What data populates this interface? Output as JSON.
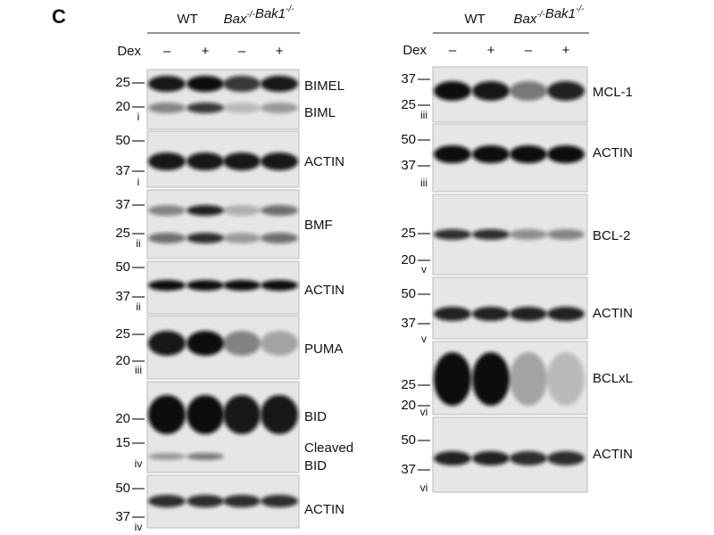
{
  "panel_label": "C",
  "left": {
    "header": {
      "wt": "WT",
      "ko": [
        {
          "gene": "Bax",
          "sup": "-/-"
        },
        {
          "gene": "Bak1",
          "sup": "-/-"
        }
      ],
      "dex": "Dex",
      "lanes": [
        "–",
        "+",
        "–",
        "+"
      ]
    },
    "blots": [
      {
        "markers": [
          "25",
          "20"
        ],
        "roman": "i",
        "labels": [
          "BIMEL",
          "BIML"
        ]
      },
      {
        "markers": [
          "50",
          "37"
        ],
        "roman": "i",
        "labels": [
          "ACTIN"
        ]
      },
      {
        "markers": [
          "37",
          "25"
        ],
        "roman": "ii",
        "labels": [
          "BMF"
        ]
      },
      {
        "markers": [
          "50",
          "37"
        ],
        "roman": "ii",
        "labels": [
          "ACTIN"
        ]
      },
      {
        "markers": [
          "25",
          "20"
        ],
        "roman": "iii",
        "labels": [
          "PUMA"
        ]
      },
      {
        "markers": [
          "20",
          "15"
        ],
        "roman": "iv",
        "labels": [
          "BID",
          "Cleaved",
          "BID"
        ]
      },
      {
        "markers": [
          "50",
          "37"
        ],
        "roman": "iv",
        "labels": [
          "ACTIN"
        ]
      }
    ]
  },
  "right": {
    "header": {
      "wt": "WT",
      "ko": [
        {
          "gene": "Bax",
          "sup": "-/-"
        },
        {
          "gene": "Bak1",
          "sup": "-/-"
        }
      ],
      "dex": "Dex",
      "lanes": [
        "–",
        "+",
        "–",
        "+"
      ]
    },
    "blots": [
      {
        "markers": [
          "37",
          "25"
        ],
        "roman": "iii",
        "labels": [
          "MCL-1"
        ]
      },
      {
        "markers": [
          "50",
          "37"
        ],
        "roman": "iii",
        "labels": [
          "ACTIN"
        ]
      },
      {
        "markers": [
          "25",
          "20"
        ],
        "roman": "v",
        "labels": [
          "BCL-2"
        ]
      },
      {
        "markers": [
          "50",
          "37"
        ],
        "roman": "v",
        "labels": [
          "ACTIN"
        ]
      },
      {
        "markers": [
          "25",
          "20"
        ],
        "roman": "vi",
        "labels": [
          "BCLxL"
        ]
      },
      {
        "markers": [
          "50",
          "37"
        ],
        "roman": "vi",
        "labels": [
          "ACTIN"
        ]
      }
    ]
  }
}
